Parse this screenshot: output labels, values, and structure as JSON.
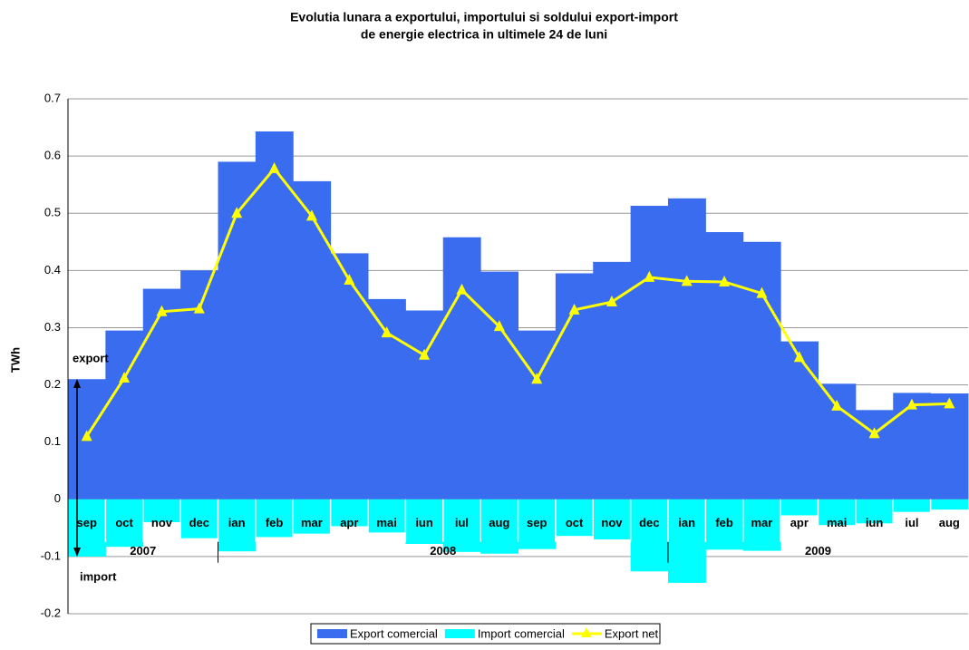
{
  "chart_data": {
    "type": "bar",
    "title": [
      "Evolutia lunara a exportului, importului si soldului export-import",
      "de energie electrica in ultimele 24 de luni"
    ],
    "y_label": "TWh",
    "categories": [
      "sep",
      "oct",
      "nov",
      "dec",
      "ian",
      "feb",
      "mar",
      "apr",
      "mai",
      "iun",
      "iul",
      "aug",
      "sep",
      "oct",
      "nov",
      "dec",
      "ian",
      "feb",
      "mar",
      "apr",
      "mai",
      "iun",
      "iul",
      "aug"
    ],
    "year_labels": [
      "2007",
      "2008",
      "2009"
    ],
    "annotations": [
      "export",
      "import"
    ],
    "series": [
      {
        "name": "Export comercial",
        "type": "bar",
        "color": "#3a6cf0",
        "values": [
          0.21,
          0.295,
          0.368,
          0.4,
          0.59,
          0.643,
          0.556,
          0.43,
          0.35,
          0.33,
          0.458,
          0.398,
          0.295,
          0.395,
          0.415,
          0.513,
          0.526,
          0.467,
          0.45,
          0.276,
          0.202,
          0.156,
          0.186,
          0.185
        ]
      },
      {
        "name": "Import comercial",
        "type": "bar",
        "color": "#00ffff",
        "values": [
          -0.1,
          -0.083,
          -0.04,
          -0.068,
          -0.091,
          -0.066,
          -0.06,
          -0.047,
          -0.058,
          -0.078,
          -0.092,
          -0.095,
          -0.087,
          -0.064,
          -0.07,
          -0.126,
          -0.146,
          -0.088,
          -0.09,
          -0.028,
          -0.045,
          -0.042,
          -0.022,
          -0.018
        ]
      },
      {
        "name": "Export net",
        "type": "line",
        "color": "#ffff00",
        "values": [
          0.11,
          0.212,
          0.328,
          0.333,
          0.5,
          0.578,
          0.495,
          0.383,
          0.291,
          0.252,
          0.366,
          0.302,
          0.21,
          0.331,
          0.345,
          0.388,
          0.381,
          0.38,
          0.36,
          0.248,
          0.163,
          0.115,
          0.165,
          0.167
        ]
      }
    ],
    "ylim": [
      -0.2,
      0.7
    ],
    "yticks": [
      -0.2,
      -0.1,
      0,
      0.1,
      0.2,
      0.3,
      0.4,
      0.5,
      0.6,
      0.7
    ],
    "grid": true
  }
}
